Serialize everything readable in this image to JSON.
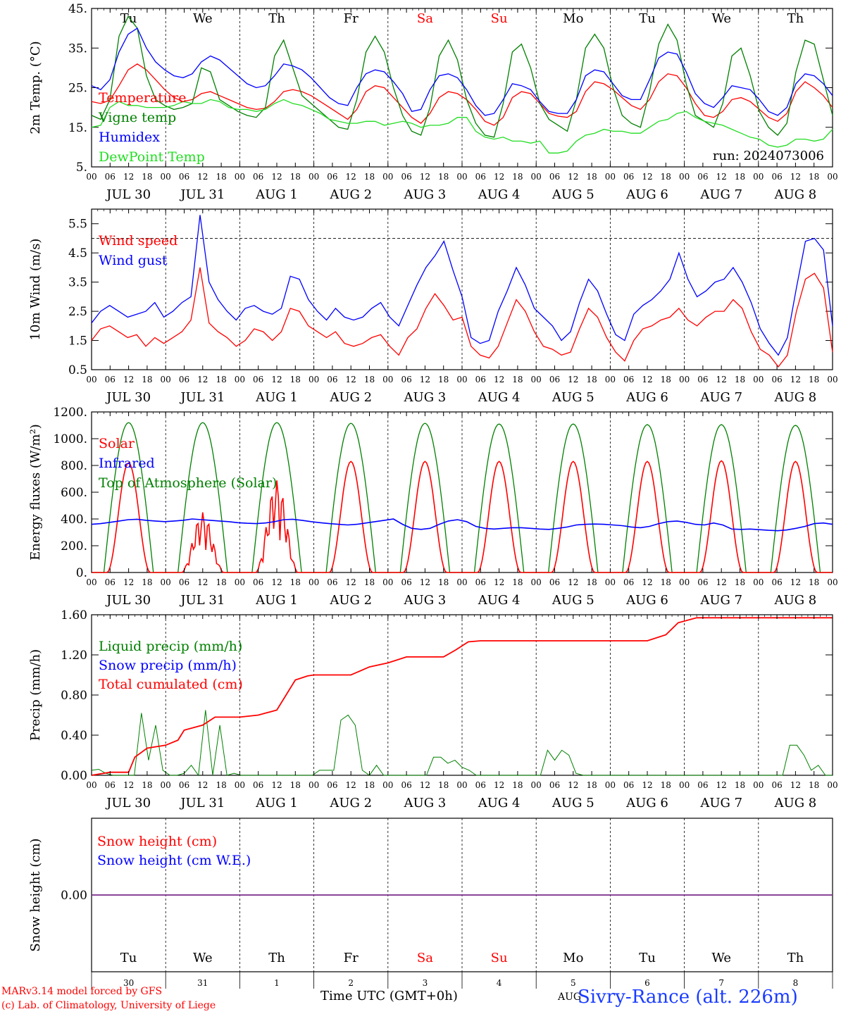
{
  "footer": {
    "model": "MARv3.14 model forced by GFS",
    "copyright": "(c) Lab. of Climatology, University of Liege",
    "time_axis": "Time UTC (GMT+0h)",
    "aug_fragment": "AUG",
    "station": "Sivry-Rance (alt. 226m)"
  },
  "colors": {
    "red": "#ff0000",
    "blue": "#0000ff",
    "green": "#008000",
    "lightgreen": "#22dd22",
    "weekend": "#ff0000",
    "axis": "#000000"
  },
  "shared_axis": {
    "hour_ticks": [
      "00",
      "06",
      "12",
      "18"
    ],
    "date_labels": [
      "JUL 30",
      "JUL 31",
      "AUG  1",
      "AUG  2",
      "AUG  3",
      "AUG  4",
      "AUG  5",
      "AUG  6",
      "AUG  7",
      "AUG  8"
    ],
    "day_names": [
      "Tu",
      "We",
      "Th",
      "Fr",
      "Sa",
      "Su",
      "Mo",
      "Tu",
      "We",
      "Th"
    ],
    "weekend_days": [
      4,
      5
    ],
    "day_numbers": [
      "30",
      "31",
      "1",
      "2",
      "3",
      "4",
      "5",
      "6",
      "7",
      "8"
    ],
    "x_range_hours": [
      0,
      240
    ]
  },
  "chart_data": [
    {
      "type": "line",
      "ylabel": "2m Temp. (°C)",
      "ylim": [
        5,
        45
      ],
      "ytick_labels": [
        "5.",
        "15.",
        "25.",
        "35.",
        "45."
      ],
      "ytick_values": [
        5,
        15,
        25,
        35,
        45
      ],
      "run_label": "run: 2024073006",
      "series": [
        {
          "name": "Temperature",
          "color": "#ff0000",
          "values": [
            21.5,
            21.0,
            21.8,
            25.5,
            29.5,
            31.0,
            29.5,
            27.0,
            24.5,
            22.5,
            21.5,
            22.0,
            23.5,
            24.0,
            23.0,
            22.0,
            21.0,
            20.0,
            19.5,
            19.8,
            21.5,
            24.0,
            24.5,
            24.0,
            23.0,
            21.5,
            20.0,
            18.5,
            17.0,
            19.5,
            24.0,
            25.5,
            25.0,
            22.5,
            20.0,
            17.5,
            16.0,
            18.5,
            22.5,
            24.0,
            23.5,
            22.0,
            19.5,
            16.5,
            15.5,
            17.5,
            22.5,
            24.0,
            23.5,
            21.0,
            18.5,
            17.8,
            17.5,
            19.0,
            24.0,
            26.5,
            26.0,
            24.5,
            22.5,
            20.5,
            19.5,
            22.0,
            26.5,
            28.5,
            28.0,
            25.0,
            21.0,
            18.0,
            17.5,
            19.0,
            22.0,
            22.5,
            21.5,
            19.5,
            17.5,
            16.5,
            18.5,
            24.0,
            26.5,
            25.0,
            23.0,
            20.0
          ]
        },
        {
          "name": "Vigne temp",
          "color": "#008000",
          "values": [
            18.0,
            17.0,
            22.0,
            38.0,
            43.0,
            40.0,
            28.0,
            22.0,
            20.5,
            19.5,
            20.0,
            21.0,
            30.0,
            29.0,
            22.0,
            20.5,
            19.0,
            18.0,
            17.5,
            20.0,
            33.0,
            37.0,
            30.0,
            23.0,
            21.0,
            19.0,
            17.0,
            15.0,
            14.5,
            22.0,
            34.0,
            38.0,
            34.0,
            25.0,
            18.0,
            14.0,
            13.0,
            20.0,
            33.0,
            37.0,
            32.0,
            22.0,
            16.0,
            13.0,
            12.5,
            21.0,
            34.0,
            36.0,
            30.0,
            21.0,
            17.0,
            15.5,
            14.0,
            22.0,
            35.0,
            38.5,
            35.0,
            25.0,
            18.0,
            16.0,
            15.0,
            24.0,
            36.0,
            41.0,
            37.0,
            26.0,
            18.0,
            16.5,
            15.0,
            21.0,
            33.0,
            35.0,
            28.0,
            19.0,
            15.0,
            13.0,
            16.0,
            29.0,
            37.0,
            36.0,
            27.0,
            18.0
          ]
        },
        {
          "name": "Humidex",
          "color": "#0000ff",
          "values": [
            25.5,
            24.5,
            27.0,
            34.0,
            38.5,
            40.0,
            35.0,
            31.5,
            29.5,
            28.0,
            27.5,
            28.5,
            31.5,
            33.0,
            32.0,
            30.0,
            28.0,
            26.0,
            25.0,
            25.5,
            28.0,
            31.0,
            30.5,
            29.5,
            27.5,
            25.0,
            22.5,
            21.0,
            20.5,
            25.0,
            28.5,
            29.5,
            29.0,
            26.5,
            23.5,
            19.0,
            19.5,
            24.5,
            28.0,
            28.5,
            27.5,
            24.5,
            20.5,
            18.0,
            18.5,
            22.0,
            26.0,
            25.5,
            24.5,
            21.5,
            19.0,
            18.5,
            18.5,
            22.0,
            28.0,
            29.5,
            29.0,
            26.0,
            23.0,
            22.0,
            22.0,
            27.0,
            32.5,
            34.0,
            33.5,
            29.0,
            23.5,
            21.0,
            20.0,
            22.5,
            25.5,
            25.0,
            24.5,
            22.0,
            19.0,
            18.0,
            20.0,
            26.0,
            28.5,
            28.0,
            26.0,
            23.0
          ]
        },
        {
          "name": "DewPoint Temp",
          "color": "#22dd22",
          "values": [
            15.0,
            15.5,
            20.0,
            21.5,
            20.5,
            20.5,
            20.0,
            20.0,
            20.0,
            20.5,
            21.5,
            21.0,
            21.0,
            22.0,
            21.5,
            20.0,
            19.5,
            19.5,
            19.0,
            19.5,
            21.0,
            22.0,
            21.0,
            20.5,
            19.5,
            18.5,
            17.0,
            16.5,
            16.0,
            16.0,
            16.5,
            16.5,
            15.5,
            16.0,
            16.5,
            16.0,
            15.0,
            15.5,
            15.5,
            16.0,
            17.5,
            17.5,
            14.0,
            12.5,
            12.0,
            12.5,
            11.5,
            11.5,
            11.0,
            11.5,
            8.5,
            8.5,
            9.0,
            11.5,
            13.0,
            13.5,
            14.5,
            14.0,
            14.0,
            13.5,
            13.5,
            15.0,
            16.5,
            17.0,
            18.5,
            19.0,
            17.5,
            16.5,
            16.0,
            15.5,
            14.5,
            13.5,
            12.5,
            12.0,
            10.5,
            10.0,
            10.5,
            12.0,
            12.0,
            11.5,
            12.0,
            14.5
          ]
        }
      ]
    },
    {
      "type": "line",
      "ylabel": "10m Wind (m/s)",
      "ylim": [
        0.5,
        6.0
      ],
      "ytick_labels": [
        "0.5",
        "1.5",
        "2.5",
        "3.5",
        "4.5",
        "5.5"
      ],
      "ytick_values": [
        0.5,
        1.5,
        2.5,
        3.5,
        4.5,
        5.5
      ],
      "reference_line": 5.0,
      "series": [
        {
          "name": "Wind speed",
          "color": "#ff0000",
          "values": [
            1.5,
            1.9,
            2.0,
            1.8,
            1.6,
            1.7,
            1.3,
            1.6,
            1.4,
            1.6,
            1.8,
            2.2,
            4.0,
            2.1,
            1.8,
            1.6,
            1.3,
            1.5,
            1.9,
            1.8,
            1.5,
            1.8,
            2.6,
            2.5,
            2.0,
            1.8,
            1.6,
            1.8,
            1.4,
            1.3,
            1.4,
            1.6,
            1.7,
            1.3,
            1.0,
            1.6,
            1.9,
            2.6,
            3.1,
            2.7,
            2.2,
            2.3,
            1.3,
            1.0,
            0.9,
            1.3,
            2.1,
            2.9,
            2.5,
            1.8,
            1.3,
            1.2,
            1.0,
            1.1,
            1.9,
            2.6,
            2.3,
            1.6,
            1.1,
            0.8,
            1.5,
            1.9,
            2.0,
            2.2,
            2.3,
            2.6,
            2.2,
            2.0,
            2.3,
            2.5,
            2.5,
            2.9,
            2.6,
            1.8,
            1.2,
            1.0,
            0.6,
            1.0,
            2.5,
            3.6,
            3.8,
            3.3,
            1.1
          ]
        },
        {
          "name": "Wind gust",
          "color": "#0000ff",
          "values": [
            2.1,
            2.5,
            2.7,
            2.5,
            2.3,
            2.4,
            2.5,
            2.8,
            2.3,
            2.5,
            2.8,
            3.0,
            5.8,
            3.5,
            2.9,
            2.5,
            2.2,
            2.6,
            2.7,
            2.5,
            2.4,
            2.6,
            3.7,
            3.6,
            2.9,
            2.5,
            2.2,
            2.6,
            2.3,
            2.2,
            2.3,
            2.6,
            2.8,
            2.3,
            2.0,
            2.7,
            3.4,
            4.0,
            4.4,
            4.9,
            3.9,
            3.0,
            1.6,
            1.4,
            1.5,
            2.5,
            3.2,
            4.0,
            3.4,
            2.6,
            2.3,
            2.0,
            1.5,
            1.8,
            2.8,
            3.6,
            3.2,
            2.4,
            1.7,
            1.5,
            2.4,
            2.7,
            2.9,
            3.2,
            3.6,
            4.5,
            3.6,
            3.0,
            3.2,
            3.5,
            3.6,
            4.0,
            3.5,
            2.8,
            1.9,
            1.4,
            1.0,
            1.6,
            3.3,
            4.9,
            5.0,
            4.6,
            2.0
          ]
        }
      ]
    },
    {
      "type": "line",
      "ylabel": "Energy fluxes (W/m²)",
      "ylim": [
        0,
        1200
      ],
      "ytick_labels": [
        "0.",
        "200.",
        "400.",
        "600.",
        "800.",
        "1000.",
        "1200."
      ],
      "ytick_values": [
        0,
        200,
        400,
        600,
        800,
        1000,
        1200
      ],
      "series": [
        {
          "name": "Solar",
          "color": "#ff0000",
          "daily_peaks": [
            820,
            450,
            690,
            830,
            830,
            830,
            830,
            830,
            835,
            830
          ]
        },
        {
          "name": "Infrared",
          "color": "#0000ff",
          "values": [
            360,
            365,
            375,
            385,
            395,
            398,
            390,
            385,
            380,
            385,
            390,
            400,
            395,
            390,
            385,
            380,
            372,
            368,
            365,
            370,
            380,
            395,
            398,
            390,
            380,
            372,
            365,
            360,
            355,
            360,
            370,
            380,
            390,
            400,
            360,
            330,
            322,
            330,
            360,
            385,
            395,
            380,
            345,
            330,
            325,
            330,
            335,
            335,
            330,
            325,
            322,
            330,
            340,
            355,
            360,
            362,
            360,
            355,
            350,
            340,
            335,
            345,
            365,
            380,
            385,
            375,
            360,
            355,
            370,
            355,
            325,
            322,
            325,
            320,
            315,
            312,
            318,
            330,
            345,
            365,
            370,
            360
          ]
        },
        {
          "name": "Top of Atmosphere (Solar)",
          "color": "#008000",
          "daily_peaks": [
            1120,
            1120,
            1120,
            1115,
            1115,
            1110,
            1110,
            1105,
            1105,
            1100
          ]
        }
      ]
    },
    {
      "type": "line",
      "ylabel": "Precip (mm/h)",
      "ylim": [
        0,
        1.6
      ],
      "ytick_labels": [
        "0.00",
        "0.40",
        "0.80",
        "1.20",
        "1.60"
      ],
      "ytick_values": [
        0,
        0.4,
        0.8,
        1.2,
        1.6
      ],
      "series": [
        {
          "name": "Liquid precip (mm/h)",
          "color": "#008000",
          "values": [
            0.05,
            0.06,
            0.02,
            0.0,
            0.0,
            0.0,
            0.0,
            0.62,
            0.15,
            0.5,
            0.05,
            0.0,
            0.0,
            0.02,
            0.1,
            0.0,
            0.65,
            0.0,
            0.5,
            0.0,
            0.02,
            0.0,
            0.0,
            0.0,
            0.0,
            0.0,
            0.0,
            0.0,
            0.0,
            0.0,
            0.0,
            0.0,
            0.05,
            0.05,
            0.05,
            0.55,
            0.6,
            0.5,
            0.05,
            0.0,
            0.1,
            0.0,
            0.0,
            0.0,
            0.0,
            0.0,
            0.0,
            0.0,
            0.18,
            0.18,
            0.12,
            0.15,
            0.08,
            0.05,
            0.0,
            0.0,
            0.0,
            0.0,
            0.0,
            0.0,
            0.0,
            0.0,
            0.0,
            0.0,
            0.25,
            0.15,
            0.25,
            0.2,
            0.02,
            0.0,
            0.0,
            0.0,
            0.0,
            0.0,
            0.0,
            0.0,
            0.0,
            0.0,
            0.0,
            0.0,
            0.0,
            0.0,
            0.0,
            0.0,
            0.0,
            0.0,
            0.0,
            0.0,
            0.0,
            0.0,
            0.0,
            0.0,
            0.0,
            0.0,
            0.0,
            0.0,
            0.0,
            0.0,
            0.3,
            0.3,
            0.2,
            0.05,
            0.1,
            0.0,
            0.0
          ]
        },
        {
          "name": "Snow precip (mm/h)",
          "color": "#0000ff",
          "values": []
        },
        {
          "name": "Total cumulated (cm)",
          "color": "#ff0000",
          "points": [
            [
              0,
              0.0
            ],
            [
              6,
              0.03
            ],
            [
              12,
              0.03
            ],
            [
              14,
              0.18
            ],
            [
              18,
              0.27
            ],
            [
              24,
              0.3
            ],
            [
              28,
              0.35
            ],
            [
              30,
              0.45
            ],
            [
              36,
              0.5
            ],
            [
              40,
              0.58
            ],
            [
              48,
              0.58
            ],
            [
              54,
              0.6
            ],
            [
              60,
              0.65
            ],
            [
              66,
              0.95
            ],
            [
              70,
              0.99
            ],
            [
              72,
              1.0
            ],
            [
              84,
              1.0
            ],
            [
              90,
              1.08
            ],
            [
              96,
              1.12
            ],
            [
              102,
              1.18
            ],
            [
              108,
              1.18
            ],
            [
              114,
              1.18
            ],
            [
              118,
              1.25
            ],
            [
              122,
              1.33
            ],
            [
              126,
              1.34
            ],
            [
              144,
              1.34
            ],
            [
              180,
              1.34
            ],
            [
              186,
              1.4
            ],
            [
              190,
              1.52
            ],
            [
              196,
              1.57
            ],
            [
              240,
              1.57
            ]
          ]
        }
      ]
    },
    {
      "type": "line",
      "ylabel": "Snow height (cm)",
      "ylim": [
        -1,
        1
      ],
      "ytick_labels": [
        "0.00"
      ],
      "ytick_values": [
        0
      ],
      "series": [
        {
          "name": "Snow height (cm)",
          "color": "#ff0000",
          "values": [
            0,
            0
          ]
        },
        {
          "name": "Snow height (cm W.E.)",
          "color": "#0000ff",
          "values": [
            0,
            0
          ]
        }
      ]
    }
  ]
}
